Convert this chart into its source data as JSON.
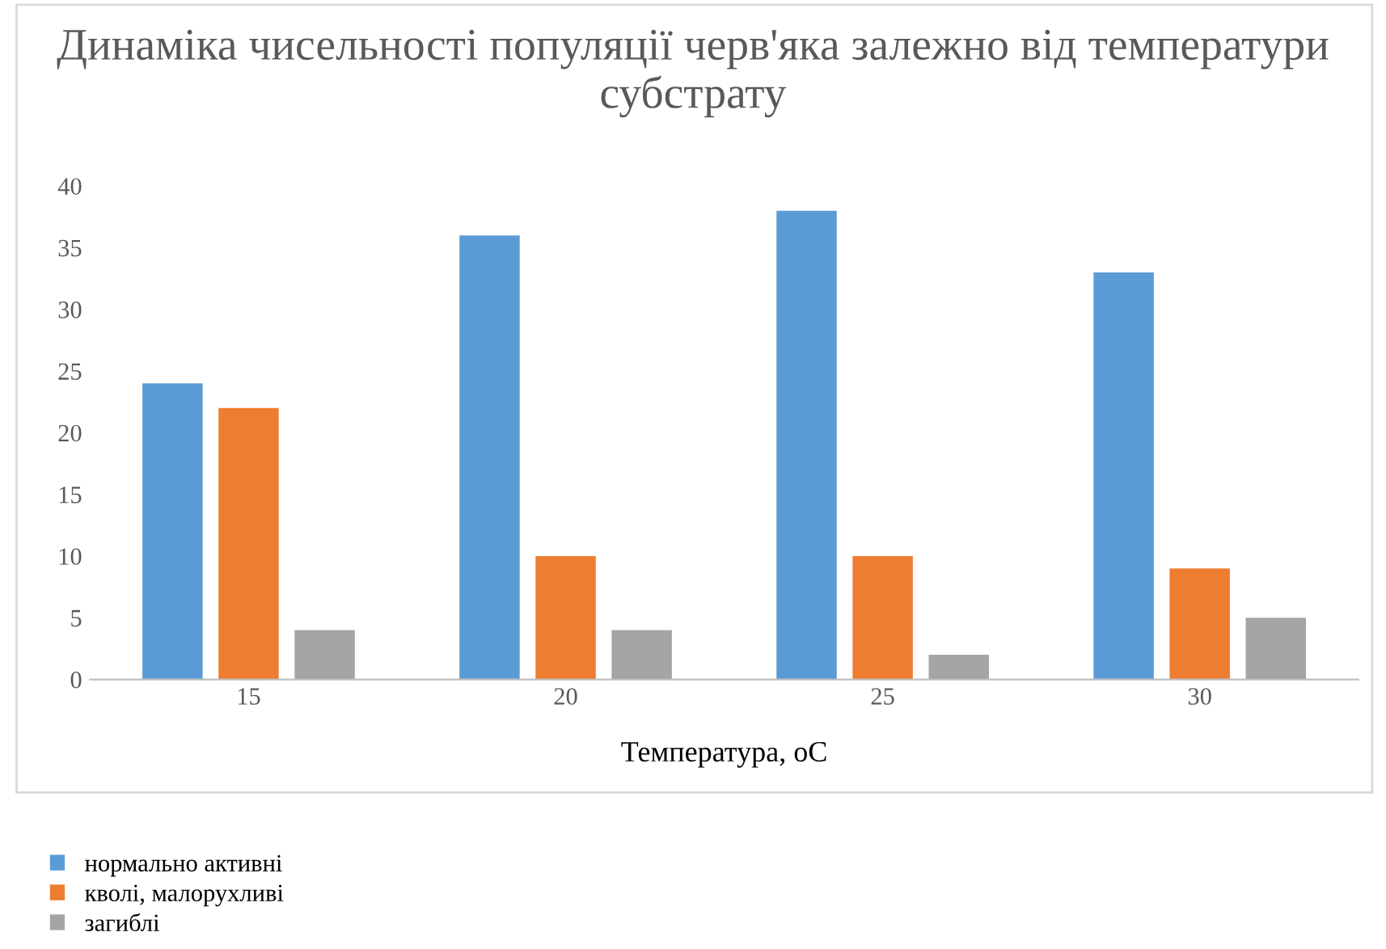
{
  "chart_data": {
    "type": "bar",
    "title": "Динаміка чисельності популяції черв'яка залежно від температури субстрату",
    "xlabel": "Температура, оС",
    "categories": [
      "15",
      "20",
      "25",
      "30"
    ],
    "series": [
      {
        "name": "нормально активні",
        "color": "#5b9bd5",
        "values": [
          24,
          36,
          38,
          33
        ]
      },
      {
        "name": "кволі, малорухливі",
        "color": "#ed7d31",
        "values": [
          22,
          10,
          10,
          9
        ]
      },
      {
        "name": "загиблі",
        "color": "#a5a5a5",
        "values": [
          4,
          4,
          2,
          5
        ]
      }
    ],
    "ylim": [
      0,
      40
    ],
    "yticks": [
      0,
      5,
      10,
      15,
      20,
      25,
      30,
      35,
      40
    ],
    "grid": false,
    "legend": "bottom left"
  }
}
